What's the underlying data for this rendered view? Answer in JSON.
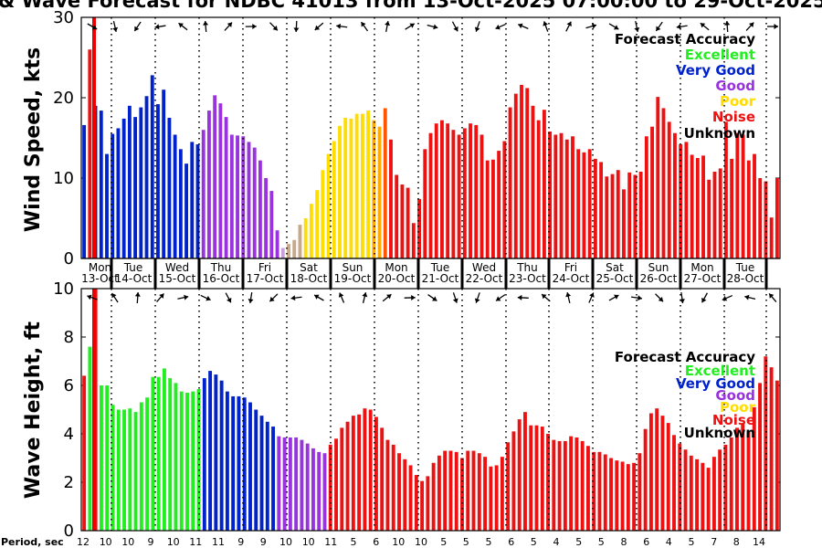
{
  "chart_data": {
    "title": "& Wave Forecast for NDBC 41013 from 13-Oct-2025 07:00:00 to 29-Oct-2025",
    "day_labels": [
      "Mon",
      "Tue",
      "Wed",
      "Thu",
      "Fri",
      "Sat",
      "Sun",
      "Mon",
      "Tue",
      "Wed",
      "Thu",
      "Fri",
      "Sat",
      "Sun",
      "Mon",
      "Tue"
    ],
    "date_labels": [
      "13-Oct",
      "14-Oct",
      "15-Oct",
      "16-Oct",
      "17-Oct",
      "18-Oct",
      "19-Oct",
      "20-Oct",
      "21-Oct",
      "22-Oct",
      "23-Oct",
      "24-Oct",
      "25-Oct",
      "26-Oct",
      "27-Oct",
      "28-Oct"
    ],
    "legend": {
      "title": "Forecast Accuracy",
      "entries": [
        {
          "label": "Excellent",
          "color": "#22ee22"
        },
        {
          "label": "Very Good",
          "color": "#0022cc"
        },
        {
          "label": "Good",
          "color": "#9933dd"
        },
        {
          "label": "Poor",
          "color": "#ffdd00"
        },
        {
          "label": "Noise",
          "color": "#ee1111"
        },
        {
          "label": "Unknown",
          "color": "#000000"
        }
      ]
    },
    "colors": {
      "noise": "#ee1111",
      "excellent": "#22ee22",
      "verygood": "#0022cc",
      "good": "#9933dd",
      "good_fade": "#c9a0d8",
      "fade_tan": "#c8a888",
      "yellow": "#ffdd00",
      "amber": "#ffaa00",
      "orange": "#ff5500",
      "now": "#ee0000"
    },
    "wind": {
      "ylabel": "Wind Speed, kts",
      "ylim": [
        0,
        30
      ],
      "yticks": [
        0,
        10,
        20,
        30
      ],
      "values": [
        16.6,
        26,
        19,
        18.4,
        13,
        15.5,
        16.2,
        17.4,
        19,
        17.6,
        18.8,
        20.2,
        22.8,
        19.2,
        21,
        17.5,
        15.4,
        13.6,
        11.8,
        14.5,
        14.2,
        16,
        18.4,
        20.3,
        19.3,
        17.6,
        15.4,
        15.3,
        15.2,
        14.5,
        13.8,
        12.2,
        10,
        8.4,
        3.5,
        1.3,
        1.8,
        2.3,
        4.2,
        5,
        6.8,
        8.5,
        11,
        13,
        14.6,
        16.5,
        17.5,
        17.4,
        18,
        18,
        18.4,
        17.2,
        16.4,
        18.7,
        14.8,
        10.4,
        9.2,
        8.8,
        4.4,
        7.4,
        13.6,
        15.6,
        16.8,
        17.2,
        16.8,
        16,
        15.4,
        16.2,
        16.8,
        16.6,
        15.4,
        12.2,
        12.3,
        13.4,
        14.6,
        18.8,
        20.5,
        21.6,
        21.2,
        19,
        17.2,
        18.5,
        15.8,
        15.4,
        15.6,
        14.8,
        15.2,
        13.6,
        13.2,
        13.6,
        12.4,
        12,
        10.2,
        10.5,
        11,
        8.6,
        10.7,
        10.4,
        10.8,
        15.2,
        16.4,
        20.1,
        18.7,
        17,
        15.6,
        14.2,
        14.5,
        12.9,
        12.5,
        12.8,
        9.8,
        10.8,
        11.2,
        17,
        12.4,
        15.6,
        15.4,
        12.2,
        13,
        10,
        9.6,
        5.1,
        10
      ],
      "band_colors": [
        "#0022cc",
        "#ee1111",
        "#0022cc",
        "#0022cc",
        "#0022cc",
        "#0022cc",
        "#0022cc",
        "#0022cc",
        "#0022cc",
        "#0022cc",
        "#0022cc",
        "#0022cc",
        "#0022cc",
        "#0022cc",
        "#0022cc",
        "#0022cc",
        "#0022cc",
        "#0022cc",
        "#0022cc",
        "#0022cc",
        "#0022cc",
        "#9933dd",
        "#9933dd",
        "#9933dd",
        "#9933dd",
        "#9933dd",
        "#9933dd",
        "#9933dd",
        "#9933dd",
        "#9933dd",
        "#9933dd",
        "#9933dd",
        "#9933dd",
        "#9933dd",
        "#9933dd",
        "#c9a0d8",
        "#c8a888",
        "#c8a888",
        "#c8a888",
        "#ffdd00",
        "#ffdd00",
        "#ffdd00",
        "#ffdd00",
        "#ffdd00",
        "#ffdd00",
        "#ffdd00",
        "#ffdd00",
        "#ffdd00",
        "#ffdd00",
        "#ffdd00",
        "#ffdd00",
        "#ffaa00",
        "#ffaa00",
        "#ff5500",
        "#ee1111"
      ]
    },
    "wave": {
      "ylabel": "Wave Height, ft",
      "ylim": [
        0,
        10
      ],
      "yticks": [
        0,
        2,
        4,
        6,
        8,
        10
      ],
      "values": [
        6.4,
        7.6,
        10,
        6,
        6,
        5.2,
        5,
        5,
        5.05,
        4.9,
        5.3,
        5.5,
        6.35,
        6.35,
        6.7,
        6.3,
        6.1,
        5.75,
        5.7,
        5.75,
        5.85,
        6.3,
        6.6,
        6.45,
        6.2,
        5.75,
        5.55,
        5.55,
        5.5,
        5.3,
        5,
        4.75,
        4.5,
        4.3,
        3.9,
        3.85,
        3.85,
        3.85,
        3.75,
        3.6,
        3.4,
        3.25,
        3.2,
        3.55,
        3.8,
        4.25,
        4.5,
        4.75,
        4.8,
        5.05,
        5,
        4.7,
        4.25,
        3.75,
        3.55,
        3.2,
        2.95,
        2.7,
        2.3,
        2.05,
        2.25,
        2.8,
        3.1,
        3.3,
        3.3,
        3.25,
        3,
        3.3,
        3.3,
        3.2,
        3.05,
        2.65,
        2.7,
        3.05,
        3.65,
        4.1,
        4.6,
        4.9,
        4.35,
        4.35,
        4.3,
        4,
        3.75,
        3.7,
        3.7,
        3.9,
        3.85,
        3.7,
        3.5,
        3.25,
        3.25,
        3.15,
        3,
        2.9,
        2.85,
        2.75,
        2.8,
        3.2,
        4.2,
        4.85,
        5.05,
        4.75,
        4.45,
        3.95,
        3.6,
        3.35,
        3.1,
        2.95,
        2.8,
        2.6,
        3.05,
        3.35,
        3.55,
        3.85,
        4.25,
        4.4,
        4.1,
        5.1,
        6.1,
        7.2,
        6.75,
        6.2
      ],
      "band_colors": [
        "#ee1111",
        "#22ee22",
        "#ee1111",
        "#22ee22",
        "#22ee22",
        "#22ee22",
        "#22ee22",
        "#22ee22",
        "#22ee22",
        "#22ee22",
        "#22ee22",
        "#22ee22",
        "#22ee22",
        "#22ee22",
        "#22ee22",
        "#22ee22",
        "#22ee22",
        "#22ee22",
        "#22ee22",
        "#22ee22",
        "#22ee22",
        "#0022cc",
        "#0022cc",
        "#0022cc",
        "#0022cc",
        "#0022cc",
        "#0022cc",
        "#0022cc",
        "#0022cc",
        "#0022cc",
        "#0022cc",
        "#0022cc",
        "#0022cc",
        "#0022cc",
        "#9933dd",
        "#9933dd",
        "#9933dd",
        "#9933dd",
        "#9933dd",
        "#9933dd",
        "#9933dd",
        "#9933dd",
        "#9933dd",
        "#ee1111"
      ]
    },
    "period_label": "Period, sec",
    "periods": [
      "12",
      "10",
      "10",
      "9",
      "10",
      "11",
      "11",
      "9",
      "9",
      "10",
      "10",
      "11",
      "5",
      "6",
      "10",
      "10",
      "5",
      "5",
      "5",
      "6",
      "5",
      "4",
      "5",
      "5",
      "8",
      "6",
      "4",
      "5",
      "7",
      "8",
      "14"
    ]
  }
}
